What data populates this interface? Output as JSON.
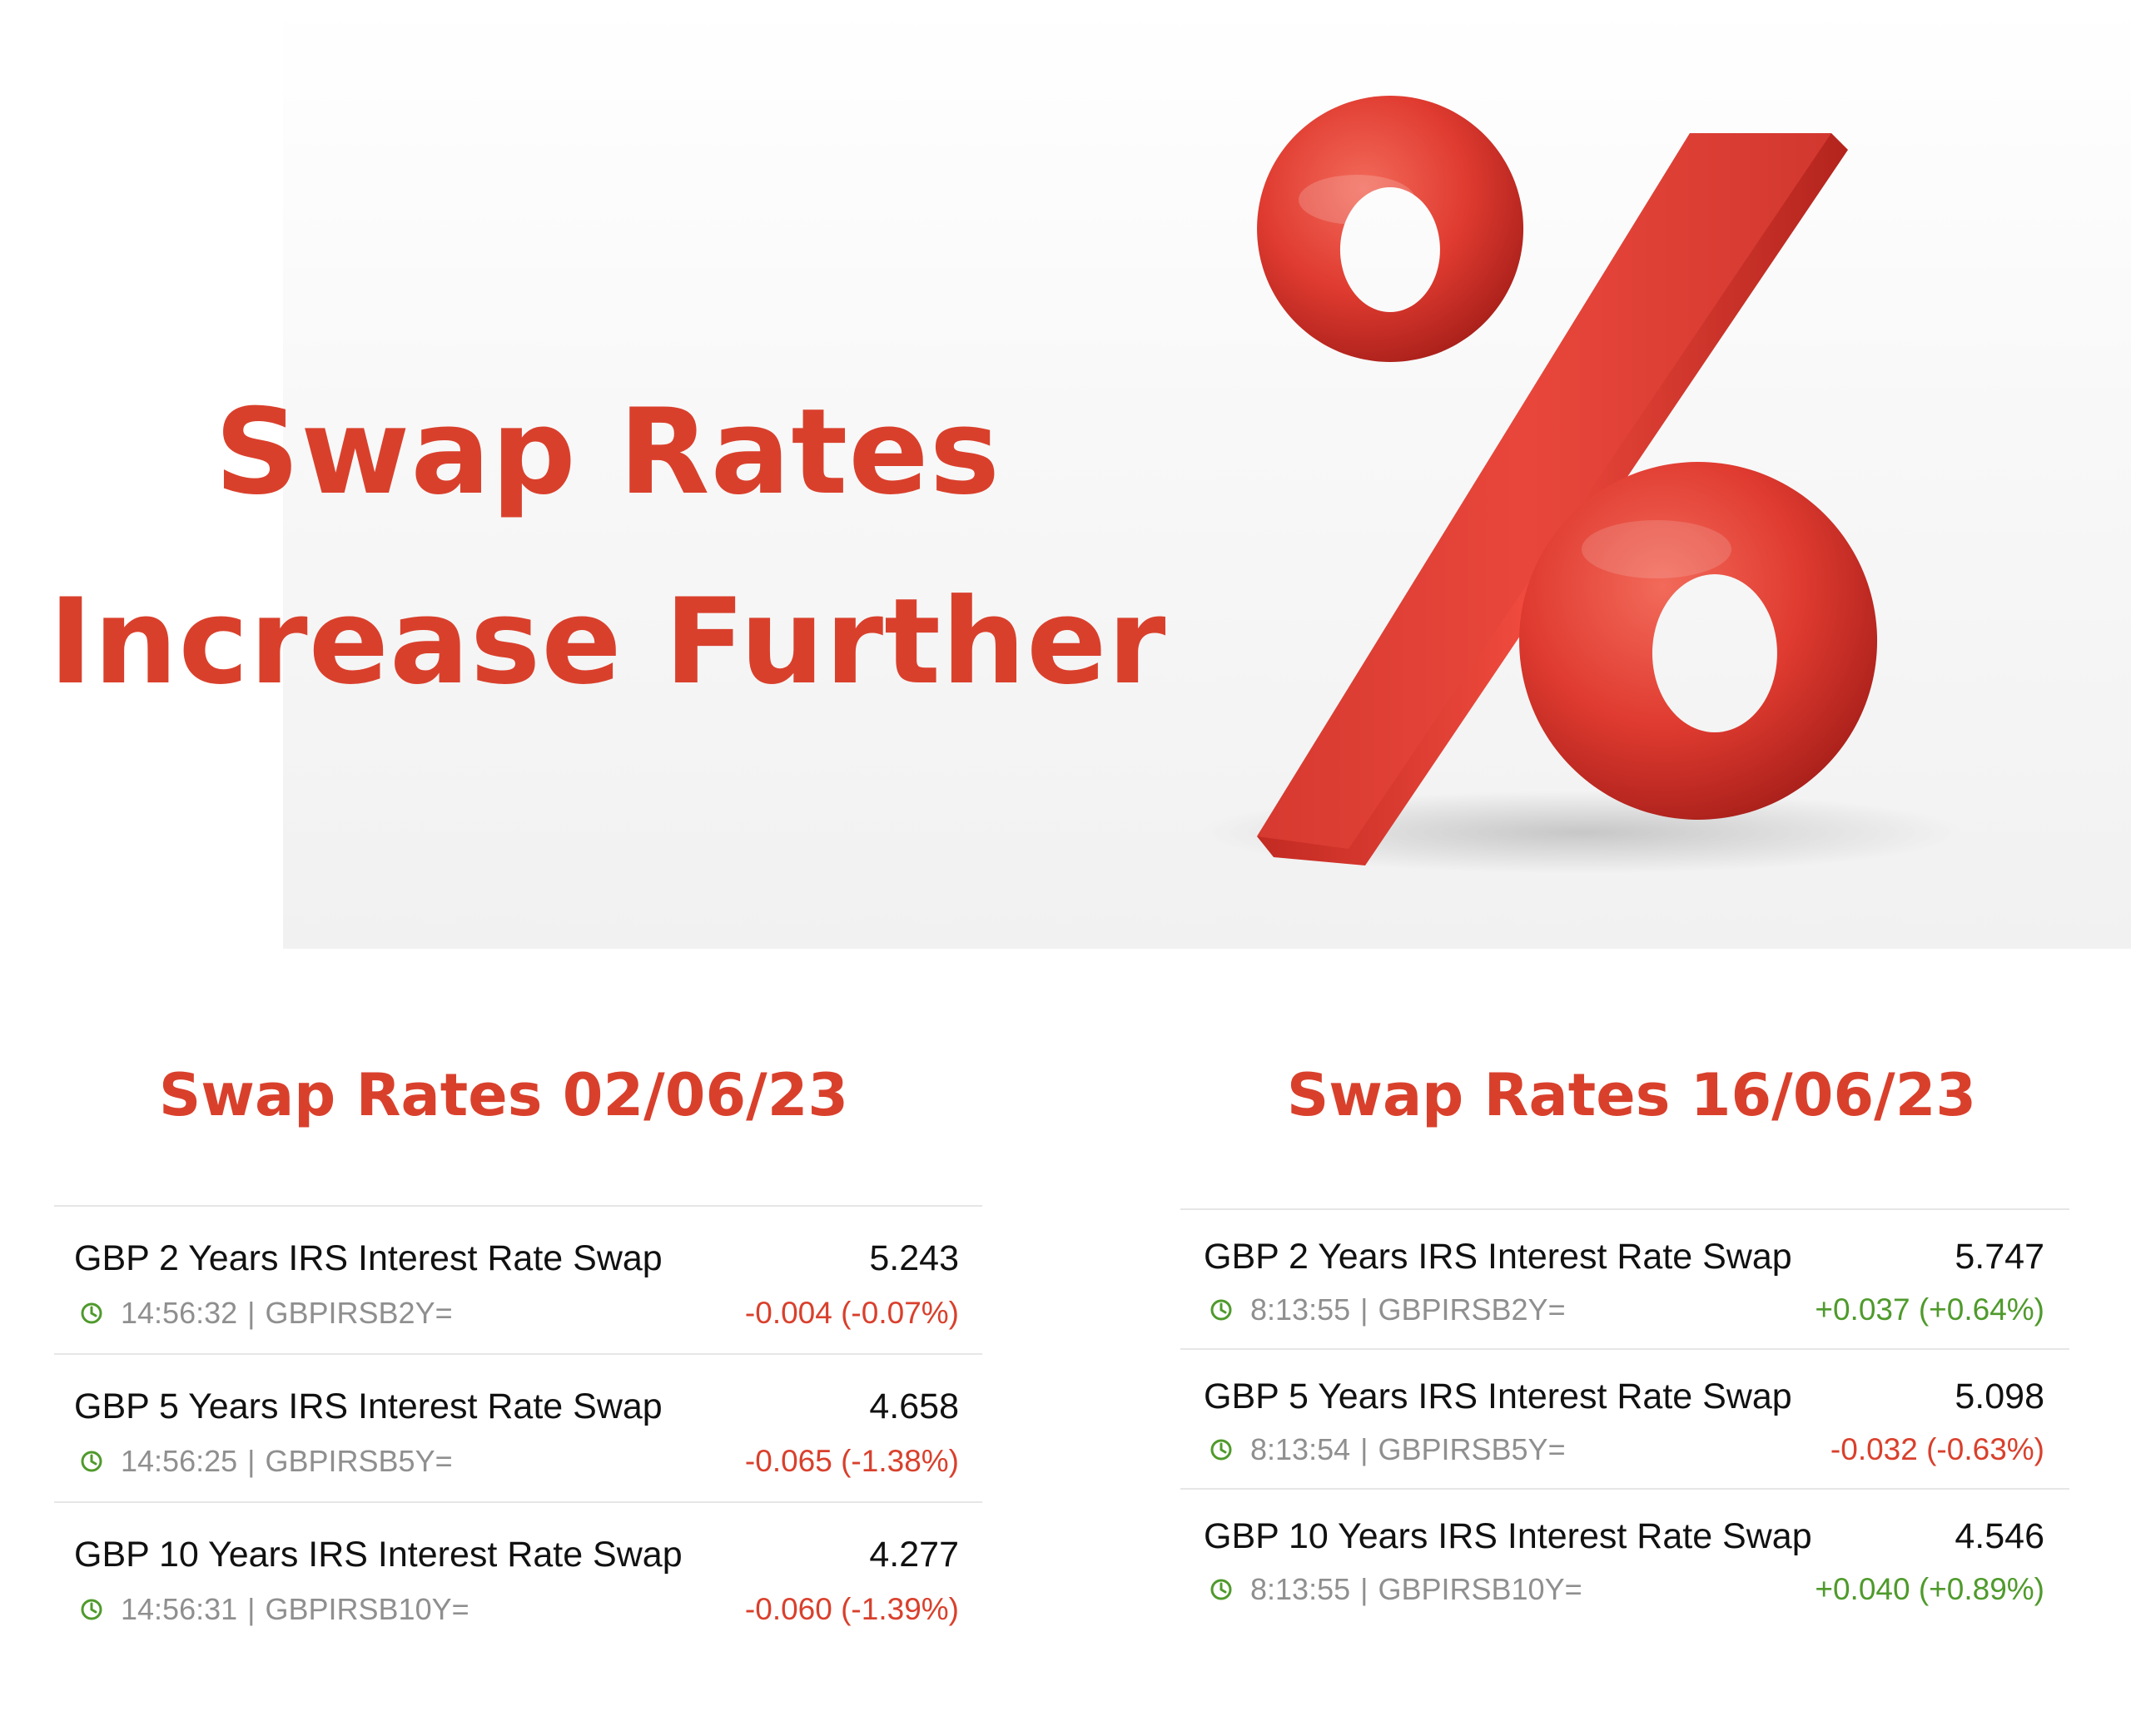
{
  "banner": {
    "headline_line1": "Swap Rates",
    "headline_line2": "Increase Further",
    "graphic": "percent-sign-3d",
    "accent_color": "#d9402c"
  },
  "panels": [
    {
      "title": "Swap Rates 02/06/23",
      "rows": [
        {
          "name": "GBP 2 Years IRS Interest Rate Swap",
          "value": "5.243",
          "time": "14:56:32",
          "sep": "|",
          "ric": "GBPIRSB2Y=",
          "change": "-0.004 (-0.07%)",
          "direction": "down"
        },
        {
          "name": "GBP 5 Years IRS Interest Rate Swap",
          "value": "4.658",
          "time": "14:56:25",
          "sep": "|",
          "ric": "GBPIRSB5Y=",
          "change": "-0.065 (-1.38%)",
          "direction": "down"
        },
        {
          "name": "GBP 10 Years IRS Interest Rate Swap",
          "value": "4.277",
          "time": "14:56:31",
          "sep": "|",
          "ric": "GBPIRSB10Y=",
          "change": "-0.060 (-1.39%)",
          "direction": "down"
        }
      ]
    },
    {
      "title": "Swap Rates 16/06/23",
      "rows": [
        {
          "name": "GBP 2 Years IRS Interest Rate Swap",
          "value": "5.747",
          "time": "8:13:55",
          "sep": "|",
          "ric": "GBPIRSB2Y=",
          "change": "+0.037 (+0.64%)",
          "direction": "up"
        },
        {
          "name": "GBP 5 Years IRS Interest Rate Swap",
          "value": "5.098",
          "time": "8:13:54",
          "sep": "|",
          "ric": "GBPIRSB5Y=",
          "change": "-0.032 (-0.63%)",
          "direction": "down"
        },
        {
          "name": "GBP 10 Years IRS Interest Rate Swap",
          "value": "4.546",
          "time": "8:13:55",
          "sep": "|",
          "ric": "GBPIRSB10Y=",
          "change": "+0.040 (+0.89%)",
          "direction": "up"
        }
      ]
    }
  ],
  "colors": {
    "negative": "#d9402c",
    "positive": "#4f9a2c",
    "clock_icon": "#4f9a2c",
    "muted_text": "#8f8f8f"
  },
  "icons": {
    "timestamp": "clock-icon"
  }
}
